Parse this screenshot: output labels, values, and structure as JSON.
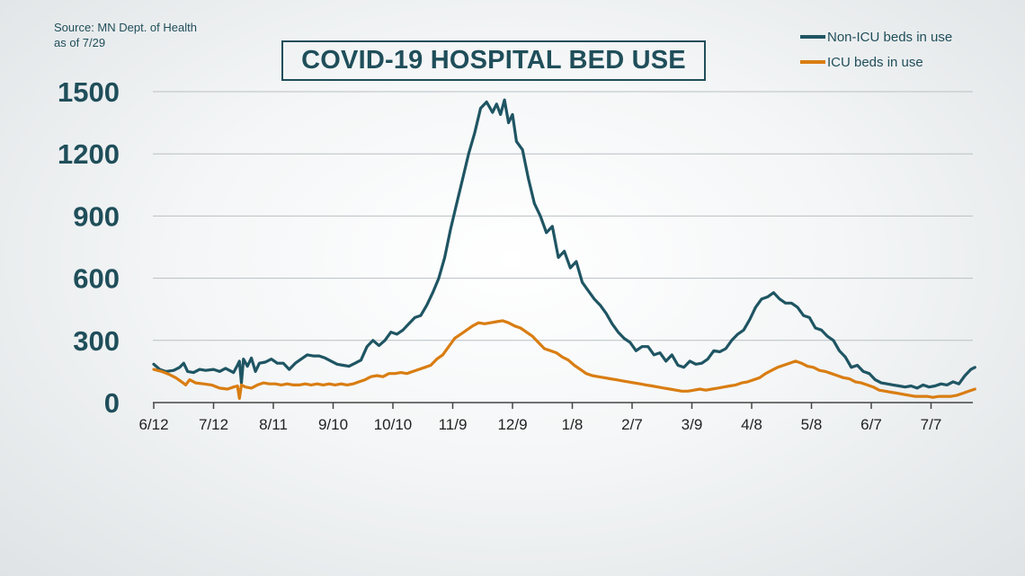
{
  "source": {
    "line1": "Source: MN Dept. of Health",
    "line2": "as of 7/29"
  },
  "legend": [
    {
      "label": "Non-ICU beds in use",
      "color": "#1f5563"
    },
    {
      "label": "ICU beds in use",
      "color": "#d97d12"
    }
  ],
  "chart_data": {
    "type": "line",
    "title": "COVID-19 HOSPITAL BED USE",
    "xlabel": "",
    "ylabel": "",
    "ylim": [
      0,
      1500
    ],
    "yticks": [
      0,
      300,
      600,
      900,
      1200,
      1500
    ],
    "xticks": [
      "6/12",
      "7/12",
      "8/11",
      "9/10",
      "10/10",
      "11/9",
      "12/9",
      "1/8",
      "2/7",
      "3/9",
      "4/8",
      "5/8",
      "6/7",
      "7/7"
    ],
    "x_range_days": [
      0,
      412
    ],
    "grid": true,
    "legend_position": "top-right",
    "series": [
      {
        "name": "Non-ICU beds in use",
        "color": "#1f5563",
        "points": [
          [
            0,
            185
          ],
          [
            3,
            160
          ],
          [
            6,
            150
          ],
          [
            10,
            155
          ],
          [
            13,
            170
          ],
          [
            15,
            190
          ],
          [
            17,
            150
          ],
          [
            20,
            145
          ],
          [
            23,
            160
          ],
          [
            26,
            155
          ],
          [
            30,
            160
          ],
          [
            33,
            150
          ],
          [
            36,
            165
          ],
          [
            40,
            145
          ],
          [
            42,
            180
          ],
          [
            43,
            200
          ],
          [
            44,
            95
          ],
          [
            45,
            210
          ],
          [
            47,
            175
          ],
          [
            49,
            215
          ],
          [
            51,
            150
          ],
          [
            53,
            190
          ],
          [
            56,
            195
          ],
          [
            59,
            210
          ],
          [
            62,
            190
          ],
          [
            65,
            190
          ],
          [
            68,
            160
          ],
          [
            71,
            190
          ],
          [
            74,
            210
          ],
          [
            77,
            230
          ],
          [
            80,
            225
          ],
          [
            83,
            225
          ],
          [
            86,
            215
          ],
          [
            89,
            200
          ],
          [
            92,
            185
          ],
          [
            95,
            180
          ],
          [
            98,
            175
          ],
          [
            101,
            190
          ],
          [
            104,
            205
          ],
          [
            107,
            270
          ],
          [
            110,
            300
          ],
          [
            113,
            275
          ],
          [
            116,
            300
          ],
          [
            119,
            340
          ],
          [
            122,
            330
          ],
          [
            125,
            350
          ],
          [
            128,
            380
          ],
          [
            131,
            410
          ],
          [
            134,
            420
          ],
          [
            137,
            470
          ],
          [
            140,
            530
          ],
          [
            143,
            600
          ],
          [
            146,
            700
          ],
          [
            149,
            840
          ],
          [
            152,
            960
          ],
          [
            155,
            1080
          ],
          [
            158,
            1200
          ],
          [
            161,
            1300
          ],
          [
            164,
            1420
          ],
          [
            167,
            1450
          ],
          [
            170,
            1400
          ],
          [
            172,
            1440
          ],
          [
            174,
            1390
          ],
          [
            176,
            1460
          ],
          [
            178,
            1350
          ],
          [
            180,
            1390
          ],
          [
            182,
            1260
          ],
          [
            185,
            1220
          ],
          [
            188,
            1080
          ],
          [
            191,
            960
          ],
          [
            194,
            900
          ],
          [
            197,
            820
          ],
          [
            200,
            850
          ],
          [
            203,
            700
          ],
          [
            206,
            730
          ],
          [
            209,
            650
          ],
          [
            212,
            680
          ],
          [
            215,
            580
          ],
          [
            218,
            540
          ],
          [
            221,
            500
          ],
          [
            224,
            470
          ],
          [
            227,
            430
          ],
          [
            230,
            380
          ],
          [
            233,
            340
          ],
          [
            236,
            310
          ],
          [
            239,
            290
          ],
          [
            242,
            250
          ],
          [
            245,
            270
          ],
          [
            248,
            270
          ],
          [
            251,
            230
          ],
          [
            254,
            240
          ],
          [
            257,
            200
          ],
          [
            260,
            230
          ],
          [
            263,
            180
          ],
          [
            266,
            170
          ],
          [
            269,
            200
          ],
          [
            272,
            185
          ],
          [
            275,
            190
          ],
          [
            278,
            210
          ],
          [
            281,
            250
          ],
          [
            284,
            245
          ],
          [
            287,
            260
          ],
          [
            290,
            300
          ],
          [
            293,
            330
          ],
          [
            296,
            350
          ],
          [
            299,
            400
          ],
          [
            302,
            460
          ],
          [
            305,
            500
          ],
          [
            308,
            510
          ],
          [
            311,
            530
          ],
          [
            314,
            500
          ],
          [
            317,
            480
          ],
          [
            320,
            480
          ],
          [
            323,
            460
          ],
          [
            326,
            420
          ],
          [
            329,
            410
          ],
          [
            332,
            360
          ],
          [
            335,
            350
          ],
          [
            338,
            320
          ],
          [
            341,
            300
          ],
          [
            344,
            250
          ],
          [
            347,
            220
          ],
          [
            350,
            170
          ],
          [
            353,
            180
          ],
          [
            356,
            150
          ],
          [
            359,
            140
          ],
          [
            362,
            110
          ],
          [
            365,
            95
          ],
          [
            368,
            90
          ],
          [
            371,
            85
          ],
          [
            374,
            80
          ],
          [
            377,
            75
          ],
          [
            380,
            80
          ],
          [
            383,
            70
          ],
          [
            386,
            85
          ],
          [
            389,
            75
          ],
          [
            392,
            80
          ],
          [
            395,
            90
          ],
          [
            398,
            85
          ],
          [
            401,
            100
          ],
          [
            404,
            90
          ],
          [
            407,
            130
          ],
          [
            410,
            160
          ],
          [
            412,
            170
          ]
        ]
      },
      {
        "name": "ICU beds in use",
        "color": "#d97d12",
        "points": [
          [
            0,
            160
          ],
          [
            4,
            150
          ],
          [
            8,
            135
          ],
          [
            11,
            120
          ],
          [
            14,
            100
          ],
          [
            16,
            85
          ],
          [
            18,
            110
          ],
          [
            21,
            95
          ],
          [
            25,
            90
          ],
          [
            29,
            85
          ],
          [
            33,
            70
          ],
          [
            37,
            65
          ],
          [
            40,
            75
          ],
          [
            42,
            80
          ],
          [
            43,
            20
          ],
          [
            44,
            85
          ],
          [
            46,
            75
          ],
          [
            49,
            70
          ],
          [
            52,
            85
          ],
          [
            55,
            95
          ],
          [
            58,
            90
          ],
          [
            61,
            90
          ],
          [
            64,
            85
          ],
          [
            67,
            90
          ],
          [
            70,
            85
          ],
          [
            73,
            85
          ],
          [
            76,
            90
          ],
          [
            79,
            85
          ],
          [
            82,
            90
          ],
          [
            85,
            85
          ],
          [
            88,
            90
          ],
          [
            91,
            85
          ],
          [
            94,
            90
          ],
          [
            97,
            85
          ],
          [
            100,
            90
          ],
          [
            103,
            100
          ],
          [
            106,
            110
          ],
          [
            109,
            125
          ],
          [
            112,
            130
          ],
          [
            115,
            125
          ],
          [
            118,
            140
          ],
          [
            121,
            140
          ],
          [
            124,
            145
          ],
          [
            127,
            140
          ],
          [
            130,
            150
          ],
          [
            133,
            160
          ],
          [
            136,
            170
          ],
          [
            139,
            180
          ],
          [
            142,
            210
          ],
          [
            145,
            230
          ],
          [
            148,
            270
          ],
          [
            151,
            310
          ],
          [
            154,
            330
          ],
          [
            157,
            350
          ],
          [
            160,
            370
          ],
          [
            163,
            385
          ],
          [
            166,
            380
          ],
          [
            169,
            385
          ],
          [
            172,
            390
          ],
          [
            175,
            395
          ],
          [
            178,
            385
          ],
          [
            181,
            370
          ],
          [
            184,
            360
          ],
          [
            187,
            340
          ],
          [
            190,
            320
          ],
          [
            193,
            290
          ],
          [
            196,
            260
          ],
          [
            199,
            250
          ],
          [
            202,
            240
          ],
          [
            205,
            220
          ],
          [
            208,
            205
          ],
          [
            211,
            180
          ],
          [
            214,
            160
          ],
          [
            217,
            140
          ],
          [
            220,
            130
          ],
          [
            223,
            125
          ],
          [
            226,
            120
          ],
          [
            229,
            115
          ],
          [
            232,
            110
          ],
          [
            235,
            105
          ],
          [
            238,
            100
          ],
          [
            241,
            95
          ],
          [
            244,
            90
          ],
          [
            247,
            85
          ],
          [
            250,
            80
          ],
          [
            253,
            75
          ],
          [
            256,
            70
          ],
          [
            259,
            65
          ],
          [
            262,
            60
          ],
          [
            265,
            55
          ],
          [
            268,
            55
          ],
          [
            271,
            60
          ],
          [
            274,
            65
          ],
          [
            277,
            60
          ],
          [
            280,
            65
          ],
          [
            283,
            70
          ],
          [
            286,
            75
          ],
          [
            289,
            80
          ],
          [
            292,
            85
          ],
          [
            295,
            95
          ],
          [
            298,
            100
          ],
          [
            301,
            110
          ],
          [
            304,
            120
          ],
          [
            307,
            140
          ],
          [
            310,
            155
          ],
          [
            313,
            170
          ],
          [
            316,
            180
          ],
          [
            319,
            190
          ],
          [
            322,
            200
          ],
          [
            325,
            190
          ],
          [
            328,
            175
          ],
          [
            331,
            170
          ],
          [
            334,
            155
          ],
          [
            337,
            150
          ],
          [
            340,
            140
          ],
          [
            343,
            130
          ],
          [
            346,
            120
          ],
          [
            349,
            115
          ],
          [
            352,
            100
          ],
          [
            355,
            95
          ],
          [
            358,
            85
          ],
          [
            361,
            75
          ],
          [
            364,
            60
          ],
          [
            367,
            55
          ],
          [
            370,
            50
          ],
          [
            373,
            45
          ],
          [
            376,
            40
          ],
          [
            379,
            35
          ],
          [
            382,
            30
          ],
          [
            385,
            30
          ],
          [
            388,
            30
          ],
          [
            391,
            25
          ],
          [
            394,
            30
          ],
          [
            397,
            30
          ],
          [
            400,
            30
          ],
          [
            403,
            35
          ],
          [
            406,
            45
          ],
          [
            409,
            55
          ],
          [
            412,
            65
          ]
        ]
      }
    ]
  }
}
